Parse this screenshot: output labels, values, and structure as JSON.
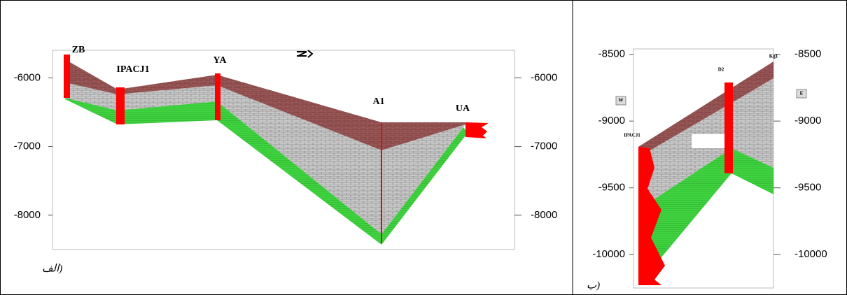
{
  "panels": [
    {
      "caption": "(الف",
      "ylim": [
        -5600,
        -8500
      ],
      "yticks": [
        -6000,
        -7000,
        -8000
      ],
      "wells": [
        "ZB",
        "IPACJ1",
        "YA",
        "A1",
        "UA"
      ]
    },
    {
      "caption": "(ب",
      "ylim": [
        -8460,
        -10250
      ],
      "yticks": [
        -8500,
        -9000,
        -9500,
        -10000
      ],
      "wells": [
        "Kg1",
        "D2",
        "IPACJ1"
      ],
      "side_labels": [
        "W",
        "E"
      ]
    }
  ]
}
